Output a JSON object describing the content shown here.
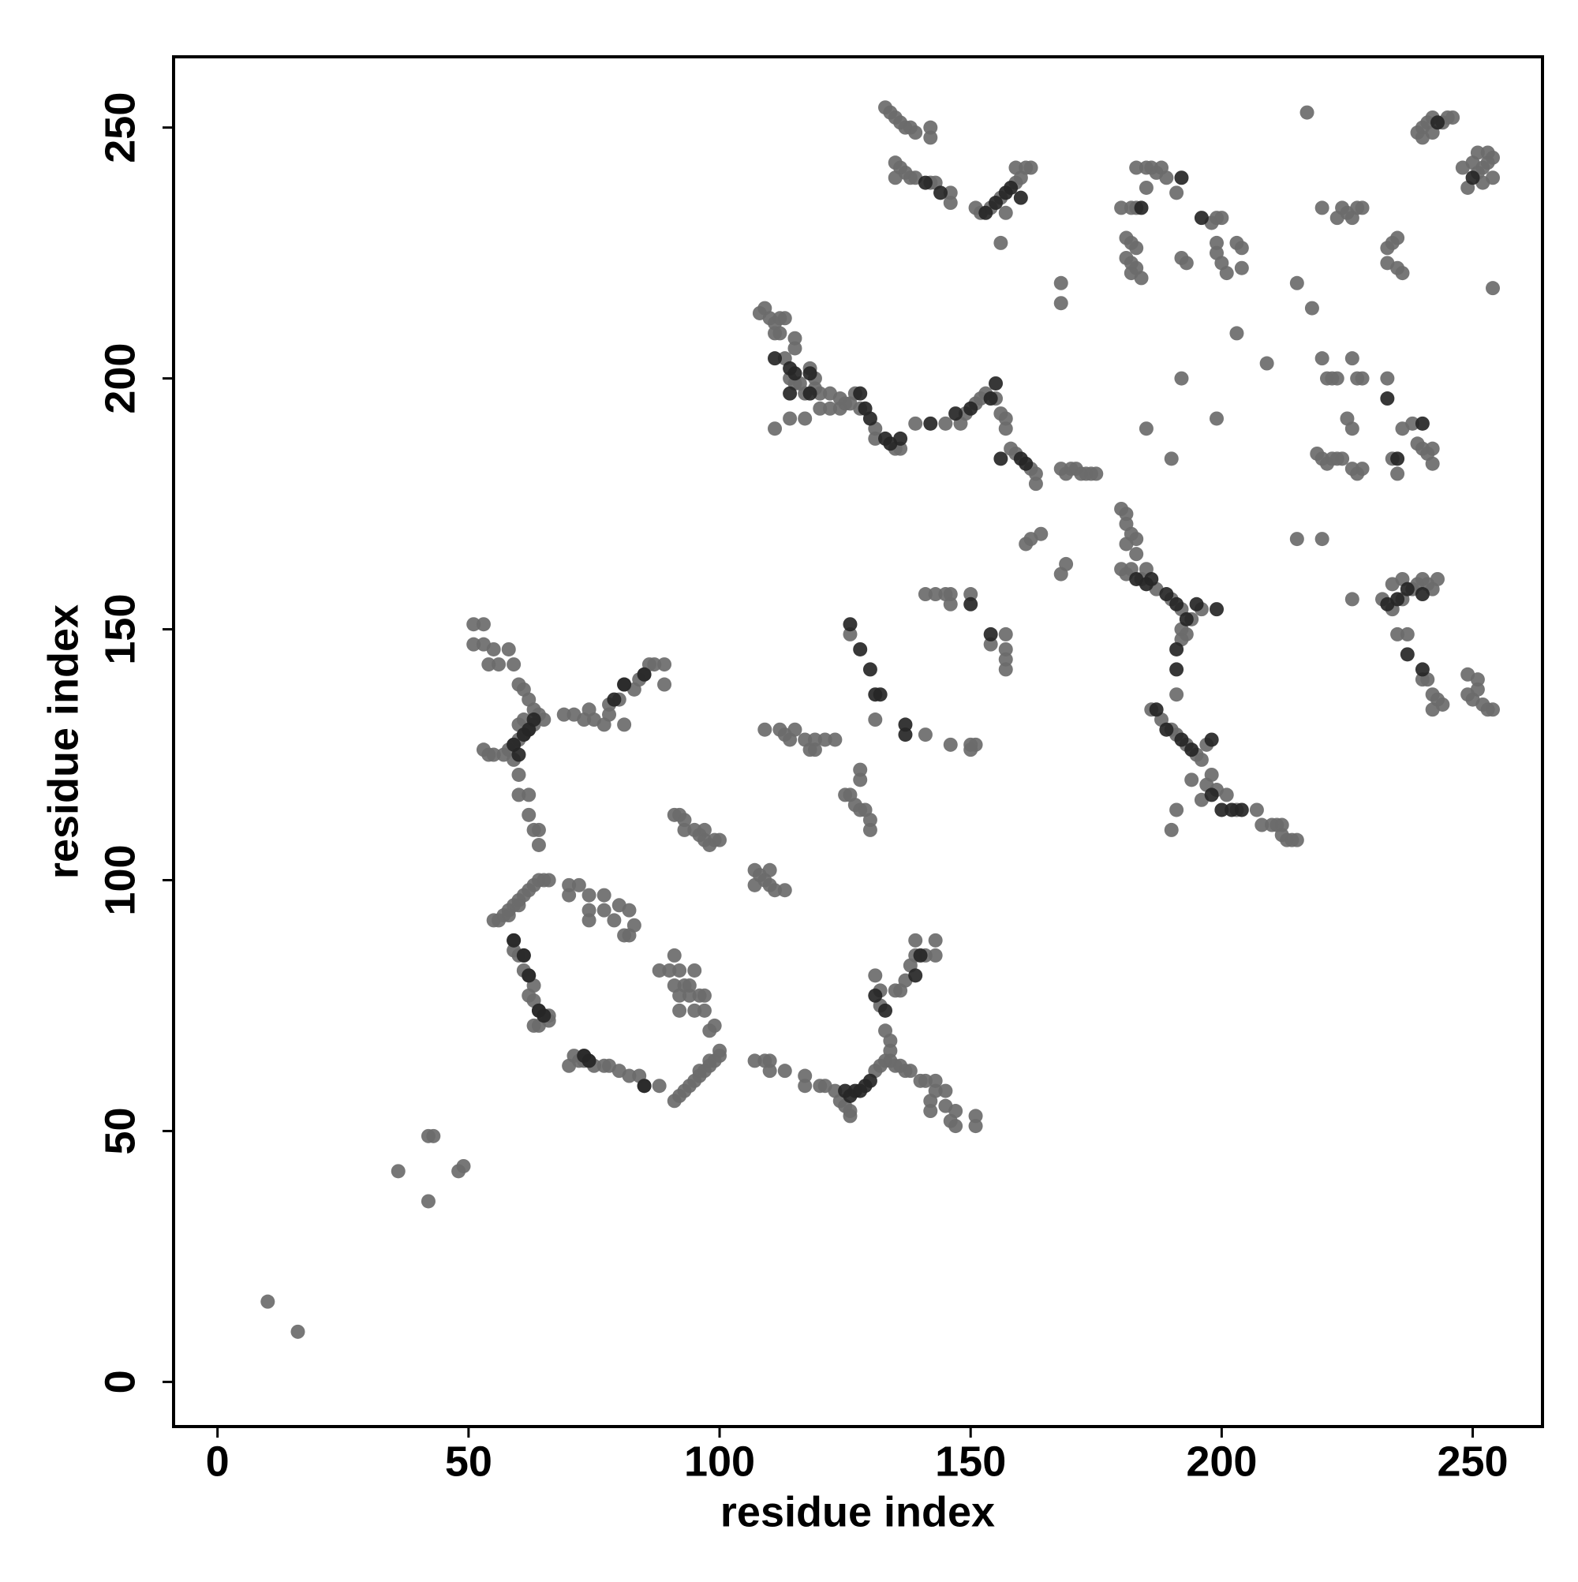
{
  "chart_data": {
    "type": "scatter",
    "x_label": "residue index",
    "y_label": "residue index",
    "xlim": [
      -8.75,
      263.9
    ],
    "ylim": [
      -8.9,
      264.1
    ],
    "xticks": [
      0,
      50,
      100,
      150,
      200,
      250
    ],
    "yticks": [
      0,
      50,
      100,
      150,
      200,
      250
    ],
    "grid": false,
    "series": [
      {
        "color": "#6b6b6b",
        "x": [
          10,
          16,
          36,
          42,
          42,
          43,
          48,
          49,
          51,
          53,
          51,
          53,
          55,
          54,
          56,
          58,
          59,
          60,
          61,
          62,
          63,
          64,
          65,
          63,
          62,
          61,
          60,
          59,
          58,
          57,
          55,
          53,
          54,
          59,
          60,
          60,
          62,
          62,
          63,
          64,
          64,
          60,
          61,
          69,
          71,
          73,
          74,
          75,
          77,
          78,
          80,
          81,
          83,
          84,
          85,
          86,
          87,
          89,
          89,
          81,
          78,
          55,
          56,
          57,
          58,
          59,
          60,
          61,
          62,
          63,
          64,
          65,
          66,
          58,
          60,
          59,
          60,
          61,
          61,
          62,
          63,
          62,
          63,
          64,
          65,
          66,
          63,
          64,
          66,
          59,
          70,
          70,
          74,
          74,
          74,
          77,
          77,
          79,
          80,
          81,
          82,
          82,
          83,
          72,
          70,
          72,
          73,
          74,
          75,
          77,
          78,
          80,
          82,
          84,
          85,
          88,
          71,
          73,
          91,
          92,
          93,
          94,
          95,
          96,
          97,
          98,
          99,
          100,
          100,
          98,
          96,
          88,
          90,
          91,
          92,
          91,
          93,
          94,
          95,
          94,
          96,
          97,
          97,
          95,
          92,
          92,
          99,
          98,
          91,
          92,
          93,
          93,
          95,
          96,
          97,
          98,
          99,
          100,
          97,
          107,
          108,
          109,
          110,
          110,
          111,
          113,
          107,
          109,
          112,
          113,
          114,
          115,
          117,
          118,
          119,
          119,
          121,
          123,
          126,
          125,
          126,
          127,
          128,
          129,
          130,
          130,
          128,
          128,
          131,
          141,
          146,
          150,
          151,
          150,
          141,
          143,
          145,
          146,
          146,
          150,
          154,
          157,
          157,
          157,
          157,
          107,
          109,
          110,
          110,
          113,
          117,
          117,
          120,
          121,
          123,
          124,
          125,
          126,
          126,
          131,
          132,
          133,
          134,
          135,
          136,
          137,
          138,
          140,
          141,
          143,
          143,
          142,
          142,
          145,
          146,
          147,
          147,
          151,
          151,
          145,
          131,
          132,
          132,
          133,
          134,
          134,
          135,
          136,
          137,
          138,
          139,
          141,
          139,
          143,
          143,
          108,
          109,
          110,
          111,
          112,
          113,
          112,
          111,
          115,
          115,
          113,
          116,
          117,
          118,
          119,
          119,
          120,
          120,
          114,
          115,
          114,
          111,
          117,
          122,
          124,
          125,
          126,
          128,
          131,
          131,
          135,
          136,
          124,
          122,
          127,
          139,
          145,
          148,
          149,
          151,
          152,
          153,
          155,
          156,
          157,
          157,
          158,
          162,
          163,
          163,
          159,
          161,
          162,
          164,
          168,
          169,
          168,
          169,
          170,
          171,
          172,
          173,
          174,
          175,
          133,
          134,
          135,
          136,
          137,
          138,
          139,
          142,
          142,
          135,
          136,
          137,
          138,
          139,
          142,
          143,
          146,
          146,
          151,
          152,
          154,
          156,
          159,
          160,
          161,
          159,
          162,
          157,
          156,
          135,
          180,
          181,
          181,
          182,
          183,
          181,
          183,
          180,
          181,
          182,
          184,
          185,
          187,
          190,
          192,
          194,
          196,
          192,
          192,
          193,
          185,
          190,
          192,
          199,
          186,
          188,
          190,
          191,
          193,
          195,
          196,
          197,
          198,
          199,
          201,
          203,
          197,
          194,
          191,
          190,
          191,
          196,
          207,
          208,
          210,
          211,
          212,
          213,
          212,
          214,
          215,
          180,
          182,
          183,
          181,
          182,
          183,
          181,
          182,
          182,
          183,
          184,
          183,
          185,
          186,
          187,
          188,
          189,
          191,
          185,
          192,
          193,
          198,
          199,
          200,
          199,
          199,
          200,
          201,
          203,
          204,
          204,
          168,
          168,
          203,
          209,
          215,
          218,
          217,
          220,
          223,
          224,
          225,
          226,
          227,
          228,
          233,
          234,
          235,
          233,
          235,
          236,
          220,
          221,
          222,
          223,
          226,
          227,
          228,
          225,
          226,
          219,
          220,
          221,
          222,
          223,
          224,
          226,
          227,
          228,
          234,
          235,
          236,
          238,
          239,
          240,
          241,
          242,
          242,
          233,
          215,
          220,
          226,
          232,
          234,
          236,
          238,
          239,
          240,
          241,
          242,
          243,
          234,
          236,
          235,
          237,
          240,
          241,
          242,
          243,
          244,
          242,
          249,
          251,
          250,
          251,
          252,
          253,
          254,
          249,
          239,
          240,
          241,
          242,
          244,
          245,
          246,
          240,
          242,
          249,
          251,
          252,
          253,
          254,
          251,
          253,
          252,
          254,
          254,
          248,
          250
        ],
        "y": [
          16,
          10,
          42,
          36,
          49,
          49,
          42,
          43,
          151,
          151,
          147,
          147,
          146,
          143,
          143,
          146,
          143,
          139,
          138,
          136,
          134,
          133,
          132,
          131,
          130,
          129,
          128,
          127,
          126,
          125,
          125,
          126,
          125,
          124,
          121,
          117,
          117,
          113,
          110,
          110,
          107,
          131,
          132,
          133,
          133,
          132,
          134,
          132,
          131,
          135,
          136,
          139,
          138,
          140,
          141,
          143,
          143,
          143,
          139,
          131,
          133,
          92,
          92,
          93,
          94,
          95,
          96,
          97,
          98,
          99,
          100,
          100,
          100,
          93,
          95,
          88,
          85,
          85,
          82,
          81,
          79,
          77,
          76,
          74,
          73,
          73,
          71,
          71,
          72,
          86,
          99,
          97,
          97,
          94,
          92,
          97,
          94,
          92,
          95,
          89,
          89,
          94,
          91,
          99,
          63,
          64,
          64,
          64,
          63,
          63,
          63,
          62,
          61,
          61,
          59,
          59,
          65,
          65,
          56,
          57,
          58,
          59,
          60,
          61,
          62,
          63,
          64,
          65,
          66,
          64,
          62,
          82,
          82,
          85,
          82,
          79,
          79,
          79,
          82,
          77,
          77,
          77,
          74,
          74,
          74,
          77,
          71,
          70,
          113,
          113,
          112,
          110,
          110,
          109,
          108,
          107,
          108,
          108,
          110,
          102,
          101,
          100,
          102,
          99,
          98,
          98,
          99,
          130,
          130,
          129,
          128,
          130,
          128,
          126,
          126,
          128,
          128,
          128,
          149,
          117,
          117,
          115,
          114,
          114,
          112,
          110,
          120,
          122,
          132,
          129,
          127,
          127,
          127,
          126,
          157,
          157,
          157,
          157,
          155,
          157,
          147,
          149,
          146,
          144,
          142,
          64,
          64,
          64,
          62,
          62,
          61,
          59,
          59,
          59,
          58,
          56,
          55,
          54,
          53,
          62,
          63,
          64,
          64,
          63,
          63,
          62,
          62,
          60,
          60,
          60,
          58,
          56,
          54,
          55,
          52,
          51,
          54,
          51,
          53,
          58,
          81,
          78,
          75,
          70,
          68,
          66,
          78,
          78,
          80,
          83,
          85,
          85,
          88,
          88,
          85,
          213,
          214,
          212,
          211,
          212,
          212,
          209,
          209,
          208,
          206,
          204,
          199,
          197,
          202,
          200,
          198,
          197,
          194,
          200,
          199,
          192,
          190,
          192,
          197,
          196,
          195,
          195,
          194,
          190,
          188,
          186,
          186,
          194,
          194,
          197,
          191,
          191,
          191,
          193,
          195,
          196,
          197,
          196,
          193,
          192,
          190,
          186,
          182,
          181,
          179,
          185,
          167,
          168,
          169,
          161,
          163,
          182,
          181,
          182,
          182,
          181,
          181,
          181,
          181,
          254,
          253,
          252,
          251,
          250,
          250,
          249,
          250,
          248,
          243,
          242,
          241,
          240,
          240,
          239,
          239,
          237,
          235,
          234,
          233,
          234,
          236,
          239,
          240,
          242,
          242,
          242,
          233,
          227,
          240,
          174,
          173,
          171,
          169,
          168,
          167,
          165,
          162,
          161,
          162,
          160,
          162,
          158,
          156,
          154,
          152,
          154,
          150,
          148,
          149,
          190,
          184,
          200,
          192,
          134,
          132,
          130,
          129,
          127,
          125,
          124,
          127,
          121,
          118,
          117,
          114,
          119,
          120,
          114,
          110,
          137,
          116,
          114,
          111,
          111,
          111,
          109,
          108,
          111,
          108,
          108,
          234,
          234,
          234,
          228,
          227,
          226,
          224,
          223,
          221,
          222,
          220,
          242,
          242,
          242,
          241,
          242,
          240,
          237,
          238,
          224,
          223,
          231,
          232,
          232,
          227,
          225,
          223,
          221,
          227,
          226,
          222,
          219,
          215,
          209,
          203,
          219,
          214,
          253,
          234,
          232,
          234,
          233,
          232,
          234,
          234,
          226,
          227,
          228,
          223,
          222,
          221,
          204,
          200,
          200,
          200,
          204,
          200,
          200,
          192,
          190,
          185,
          184,
          183,
          184,
          184,
          184,
          182,
          181,
          182,
          184,
          181,
          190,
          191,
          187,
          186,
          185,
          186,
          183,
          200,
          168,
          168,
          156,
          156,
          154,
          156,
          158,
          159,
          160,
          159,
          158,
          160,
          159,
          160,
          149,
          149,
          140,
          140,
          137,
          136,
          135,
          134,
          141,
          140,
          136,
          138,
          135,
          134,
          134,
          137,
          249,
          250,
          251,
          252,
          251,
          252,
          252,
          248,
          249,
          238,
          241,
          242,
          243,
          244,
          245,
          245,
          239,
          240,
          218,
          242,
          243
        ]
      },
      {
        "color": "#262626",
        "x": [
          59,
          60,
          61,
          62,
          63,
          81,
          85,
          79,
          59,
          61,
          62,
          64,
          65,
          73,
          74,
          85,
          126,
          128,
          130,
          131,
          132,
          137,
          137,
          154,
          150,
          125,
          126,
          127,
          128,
          129,
          130,
          131,
          139,
          140,
          133,
          111,
          114,
          115,
          118,
          118,
          114,
          128,
          129,
          133,
          134,
          136,
          130,
          142,
          147,
          150,
          154,
          155,
          156,
          160,
          161,
          141,
          144,
          153,
          155,
          157,
          158,
          160,
          183,
          185,
          186,
          189,
          191,
          193,
          195,
          199,
          191,
          191,
          187,
          189,
          192,
          194,
          198,
          198,
          200,
          204,
          202,
          184,
          192,
          196,
          233,
          240,
          235,
          233,
          235,
          237,
          240,
          237,
          240,
          243,
          250
        ],
        "y": [
          127,
          125,
          129,
          130,
          132,
          139,
          141,
          136,
          88,
          85,
          81,
          74,
          73,
          65,
          64,
          59,
          151,
          146,
          142,
          137,
          137,
          131,
          129,
          149,
          155,
          58,
          57,
          58,
          58,
          59,
          60,
          77,
          81,
          85,
          74,
          204,
          202,
          201,
          201,
          197,
          197,
          197,
          194,
          188,
          187,
          188,
          192,
          191,
          193,
          194,
          196,
          199,
          184,
          184,
          183,
          239,
          237,
          233,
          235,
          237,
          238,
          236,
          160,
          159,
          160,
          157,
          155,
          152,
          155,
          154,
          146,
          142,
          134,
          130,
          128,
          126,
          128,
          117,
          114,
          114,
          114,
          234,
          240,
          232,
          196,
          191,
          184,
          155,
          156,
          158,
          157,
          145,
          142,
          251,
          240
        ]
      }
    ]
  }
}
